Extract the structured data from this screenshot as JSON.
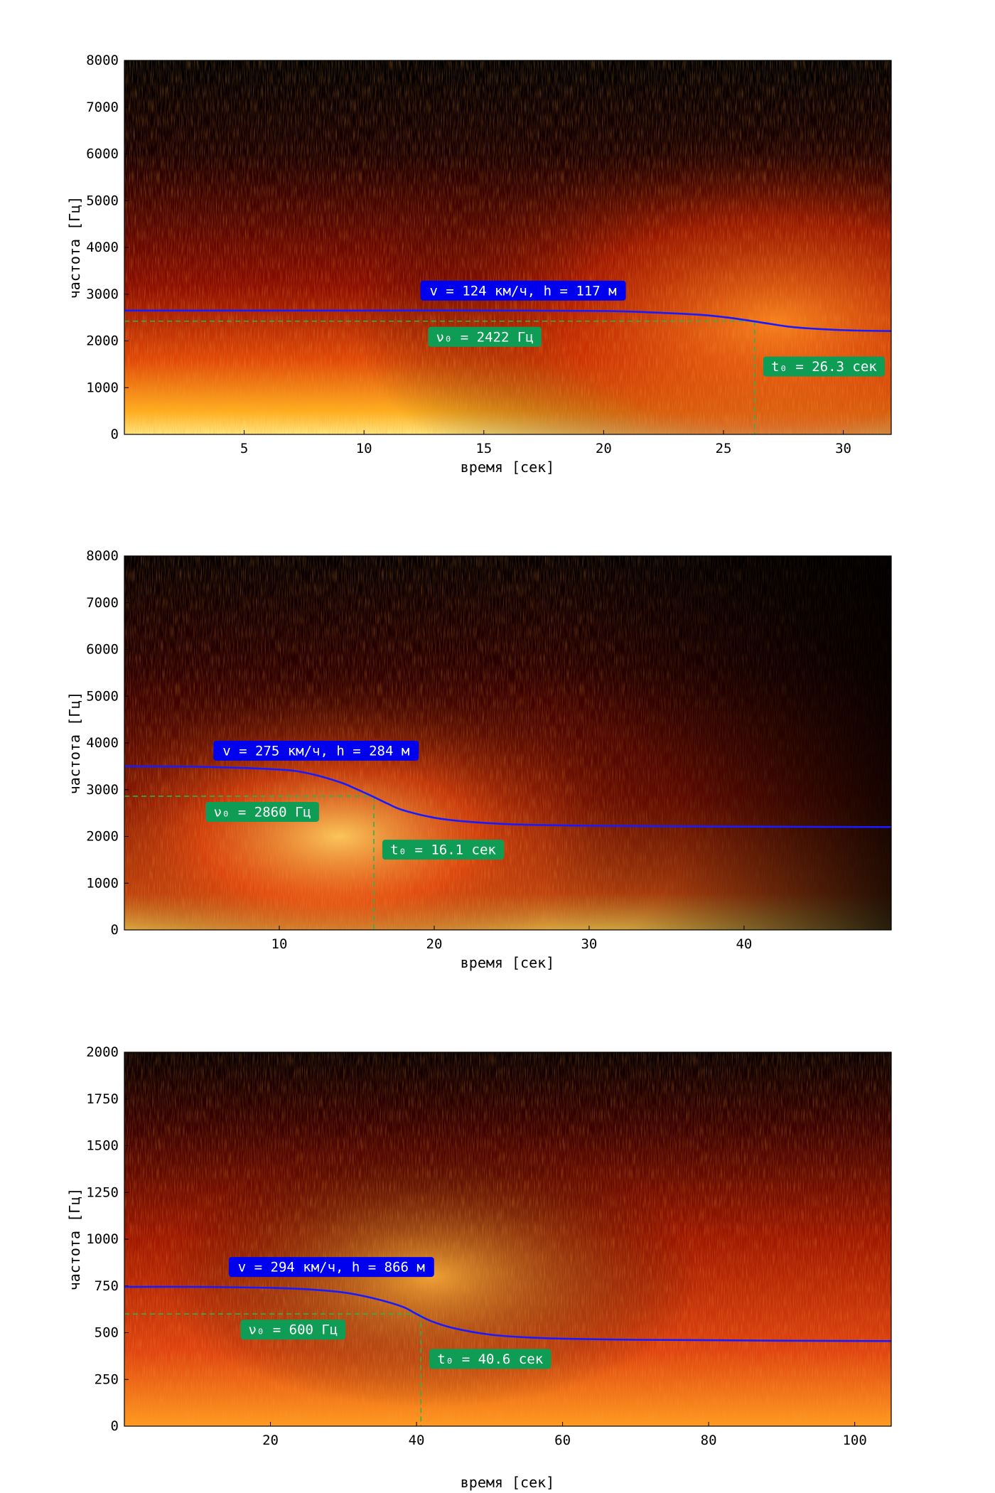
{
  "colors": {
    "background_low": "#000000",
    "background_mid": "#b01800",
    "background_high": "#ffffff",
    "fit_curve": "#1a1aff",
    "dashed_marker": "#2db34a",
    "label_blue": "#0000ee",
    "label_green": "#0f9d55"
  },
  "chart_data": [
    {
      "type": "heatmap",
      "xlabel": "время [сек]",
      "ylabel": "частота [Гц]",
      "xlim": [
        0,
        32
      ],
      "ylim": [
        0,
        8000
      ],
      "xticks": [
        5,
        10,
        15,
        20,
        25,
        30
      ],
      "yticks": [
        0,
        1000,
        2000,
        3000,
        4000,
        5000,
        6000,
        7000,
        8000
      ],
      "fit_curve": {
        "label": "v = 124 км/ч, h = 117 м",
        "x": [
          0,
          5,
          10,
          15,
          20,
          22,
          24,
          25,
          26,
          27,
          28,
          30,
          32
        ],
        "y": [
          2650,
          2650,
          2650,
          2650,
          2640,
          2610,
          2560,
          2510,
          2440,
          2360,
          2290,
          2230,
          2210
        ]
      },
      "nu0": {
        "label": "ν₀ = 2422 Гц",
        "value": 2422
      },
      "t0": {
        "label": "t₀ = 26.3 сек",
        "value": 26.3
      }
    },
    {
      "type": "heatmap",
      "xlabel": "время [сек]",
      "ylabel": "частота [Гц]",
      "xlim": [
        0,
        49.5
      ],
      "ylim": [
        0,
        8000
      ],
      "xticks": [
        10,
        20,
        30,
        40
      ],
      "yticks": [
        0,
        1000,
        2000,
        3000,
        4000,
        5000,
        6000,
        7000,
        8000
      ],
      "fit_curve": {
        "label": "v = 275 км/ч, h = 284 м",
        "x": [
          0,
          5,
          10,
          12,
          14,
          15,
          16,
          17,
          18,
          20,
          22,
          25,
          30,
          40,
          49.5
        ],
        "y": [
          3500,
          3490,
          3430,
          3340,
          3150,
          3010,
          2860,
          2700,
          2560,
          2400,
          2320,
          2260,
          2230,
          2210,
          2200
        ]
      },
      "nu0": {
        "label": "ν₀ = 2860 Гц",
        "value": 2860
      },
      "t0": {
        "label": "t₀ = 16.1 сек",
        "value": 16.1
      }
    },
    {
      "type": "heatmap",
      "xlabel": "время [сек]",
      "ylabel": "частота [Гц]",
      "xlim": [
        0,
        105
      ],
      "ylim": [
        0,
        2000
      ],
      "xticks": [
        20,
        40,
        60,
        80,
        100
      ],
      "yticks": [
        0,
        250,
        500,
        750,
        1000,
        1250,
        1500,
        1750,
        2000
      ],
      "fit_curve": {
        "label": "v = 294 км/ч, h = 866 м",
        "x": [
          0,
          10,
          20,
          25,
          30,
          34,
          38,
          40,
          42,
          45,
          50,
          55,
          60,
          70,
          80,
          90,
          105
        ],
        "y": [
          745,
          745,
          740,
          732,
          715,
          685,
          640,
          600,
          562,
          525,
          490,
          475,
          468,
          462,
          460,
          457,
          455
        ]
      },
      "nu0": {
        "label": "ν₀ = 600 Гц",
        "value": 600
      },
      "t0": {
        "label": "t₀ = 40.6 сек",
        "value": 40.6
      }
    }
  ]
}
